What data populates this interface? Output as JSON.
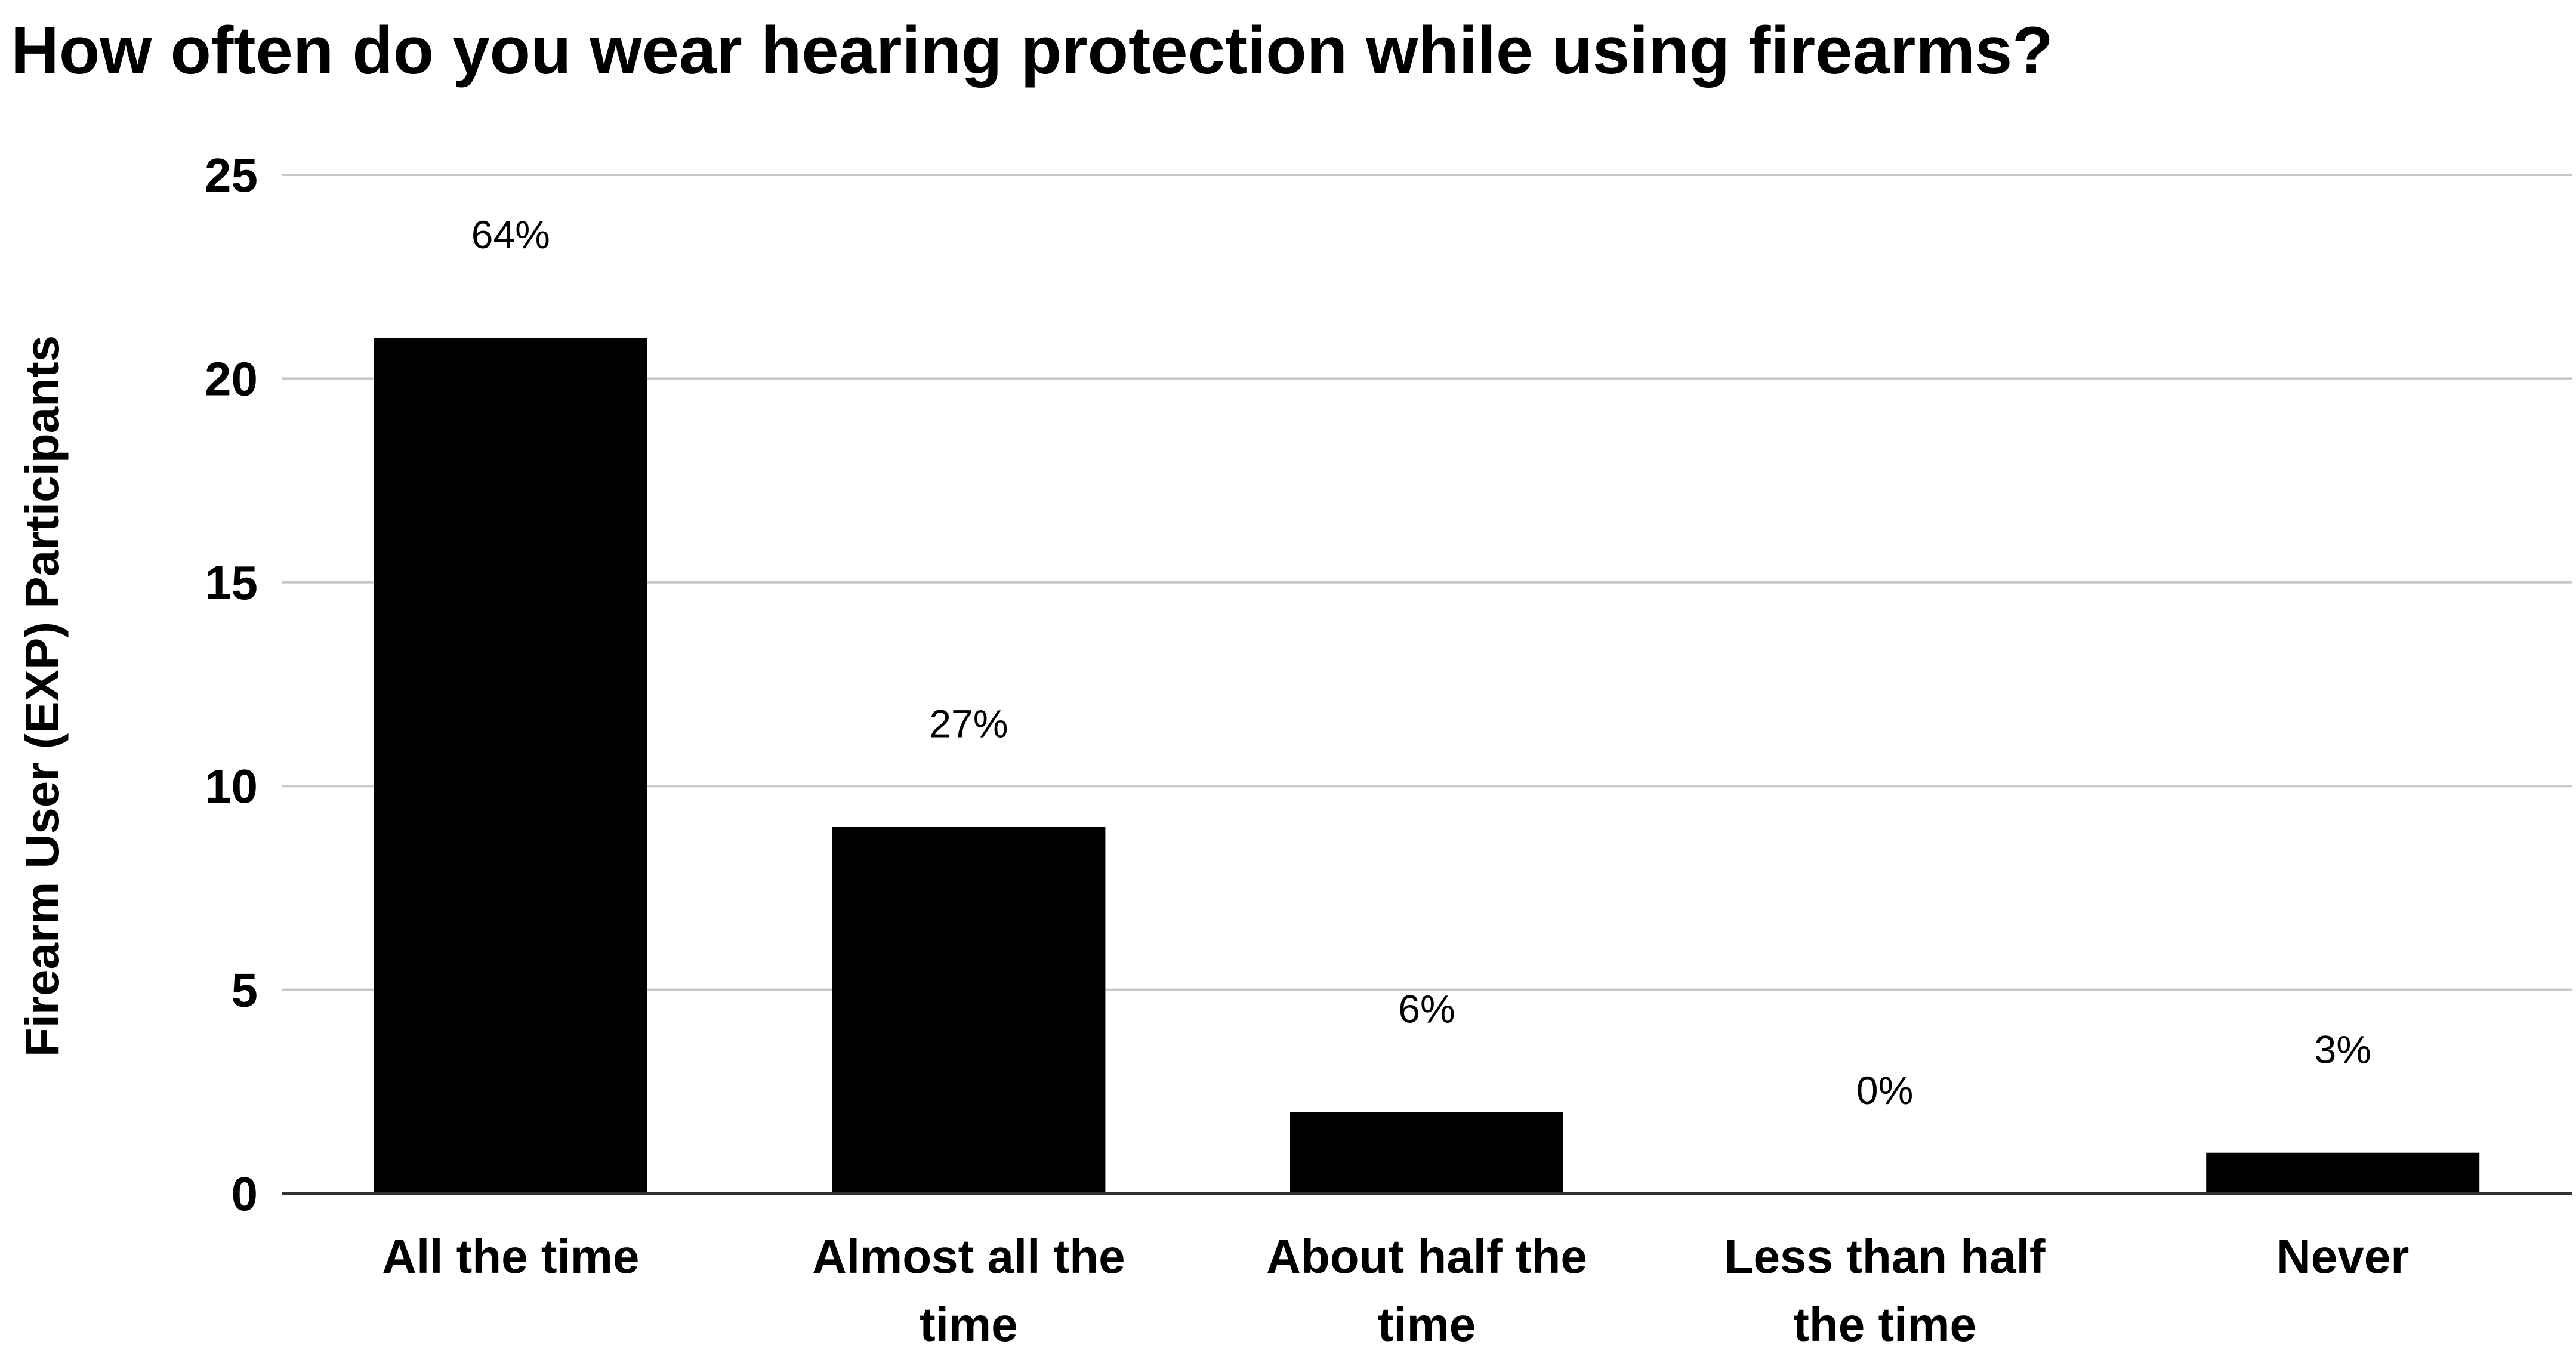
{
  "chart_data": {
    "type": "bar",
    "title": "How often do you wear hearing protection while using firearms?",
    "xlabel": "",
    "ylabel": "Firearm User (EXP) Participants",
    "categories": [
      [
        "All the time"
      ],
      [
        "Almost all the",
        "time"
      ],
      [
        "About half the",
        "time"
      ],
      [
        "Less than half",
        "the time"
      ],
      [
        "Never"
      ]
    ],
    "values": [
      21,
      9,
      2,
      0,
      1
    ],
    "data_labels": [
      "64%",
      "27%",
      "6%",
      "0%",
      "3%"
    ],
    "ylim": [
      0,
      25
    ],
    "yticks": [
      0,
      5,
      10,
      15,
      20,
      25
    ],
    "grid": true,
    "legend": "none",
    "colors": {
      "bar": "#000000",
      "grid": "#c8c8c8",
      "axis": "#333333",
      "text": "#000000"
    }
  }
}
